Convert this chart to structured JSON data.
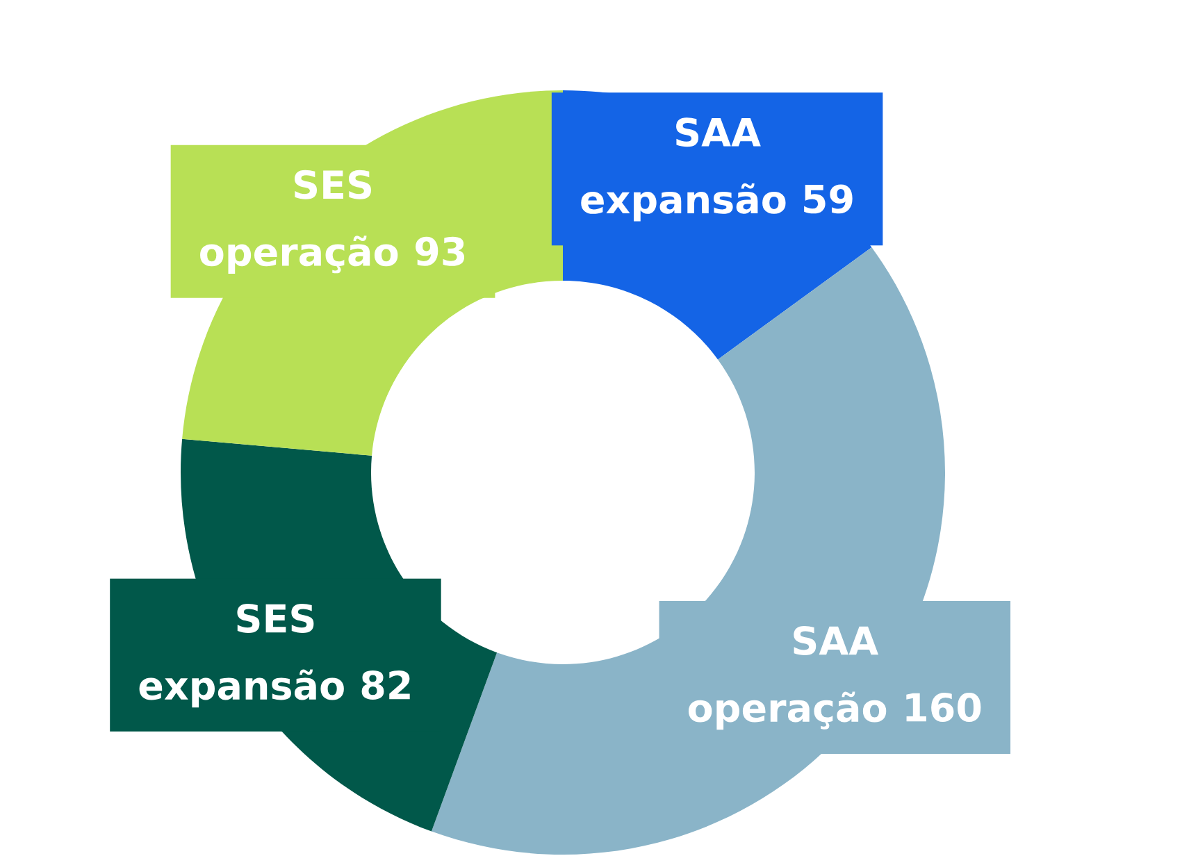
{
  "chart_data": {
    "type": "donut",
    "categories": [
      "SAA expansão",
      "SAA operação",
      "SES expansão",
      "SES operação"
    ],
    "values": [
      59,
      160,
      82,
      93
    ],
    "colors": [
      "#1464e6",
      "#8ab4c8",
      "#01584a",
      "#b8e055"
    ],
    "data_labels": true,
    "legend": false
  }
}
